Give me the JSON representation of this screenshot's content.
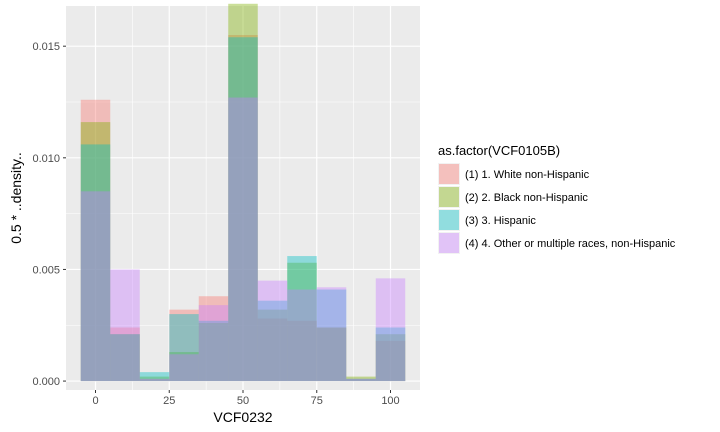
{
  "chart_data": {
    "type": "bar",
    "xlabel": "VCF0232",
    "ylabel": "0.5 * ..density..",
    "xlim": [
      -10,
      110
    ],
    "ylim": [
      -0.0004,
      0.0168
    ],
    "x_ticks": [
      0,
      25,
      50,
      75,
      100
    ],
    "y_ticks": [
      0.0,
      0.005,
      0.01,
      0.015
    ],
    "x_tick_labels": [
      "0",
      "25",
      "50",
      "75",
      "100"
    ],
    "y_tick_labels": [
      "0.000",
      "0.005",
      "0.010",
      "0.015"
    ],
    "bin_width": 10,
    "bin_centers": [
      0,
      10,
      20,
      30,
      40,
      50,
      60,
      70,
      80,
      90,
      100
    ],
    "fill_opacity": 0.4,
    "grid": true,
    "legend": {
      "title": "as.factor(VCF0105B)",
      "position": "right"
    },
    "series": [
      {
        "name": "(1) 1. White non-Hispanic",
        "color": "#F8766D",
        "values": [
          0.0126,
          0.0024,
          0.0001,
          0.0032,
          0.0038,
          0.0155,
          0.0028,
          0.0027,
          0.0024,
          0.0001,
          0.0018
        ]
      },
      {
        "name": "(2) 2. Black non-Hispanic",
        "color": "#7CAE00",
        "values": [
          0.0116,
          0.0021,
          0.0002,
          0.0013,
          0.0026,
          0.0169,
          0.0032,
          0.0053,
          0.0024,
          0.0002,
          0.0021
        ]
      },
      {
        "name": "(3) 3. Hispanic",
        "color": "#00BFC4",
        "values": [
          0.0106,
          0.0021,
          0.0004,
          0.003,
          0.0027,
          0.0154,
          0.0036,
          0.0056,
          0.0041,
          0.0001,
          0.0024
        ]
      },
      {
        "name": "(4) 4. Other or multiple races, non-Hispanic",
        "color": "#C77CFF",
        "values": [
          0.0085,
          0.005,
          0.0001,
          0.0012,
          0.0034,
          0.0127,
          0.0045,
          0.0041,
          0.0042,
          0.0001,
          0.0046
        ]
      }
    ]
  }
}
